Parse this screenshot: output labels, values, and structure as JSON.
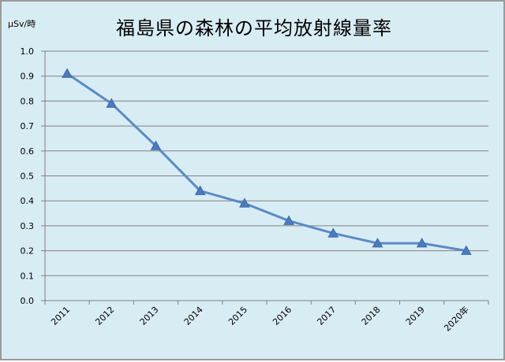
{
  "chart_data": {
    "type": "line",
    "title": "福島県の森林の平均放射線量率",
    "ylabel": "μSv/時",
    "xlabel": "",
    "categories": [
      "2011",
      "2012",
      "2013",
      "2014",
      "2015",
      "2016",
      "2017",
      "2018",
      "2019",
      "2020年"
    ],
    "series": [
      {
        "values": [
          0.91,
          0.79,
          0.62,
          0.44,
          0.39,
          0.32,
          0.27,
          0.23,
          0.23,
          0.2
        ]
      }
    ],
    "ylim": [
      0,
      1.0
    ],
    "yticks": [
      "0.0",
      "0.1",
      "0.2",
      "0.3",
      "0.4",
      "0.5",
      "0.6",
      "0.7",
      "0.8",
      "0.9",
      "1.0"
    ],
    "grid": true,
    "legend": "none",
    "marker": "triangle"
  },
  "colors": {
    "background": "#d8ecf4",
    "line": "#5b8ac6",
    "marker": "#4a7bbf",
    "grid": "#808080"
  }
}
